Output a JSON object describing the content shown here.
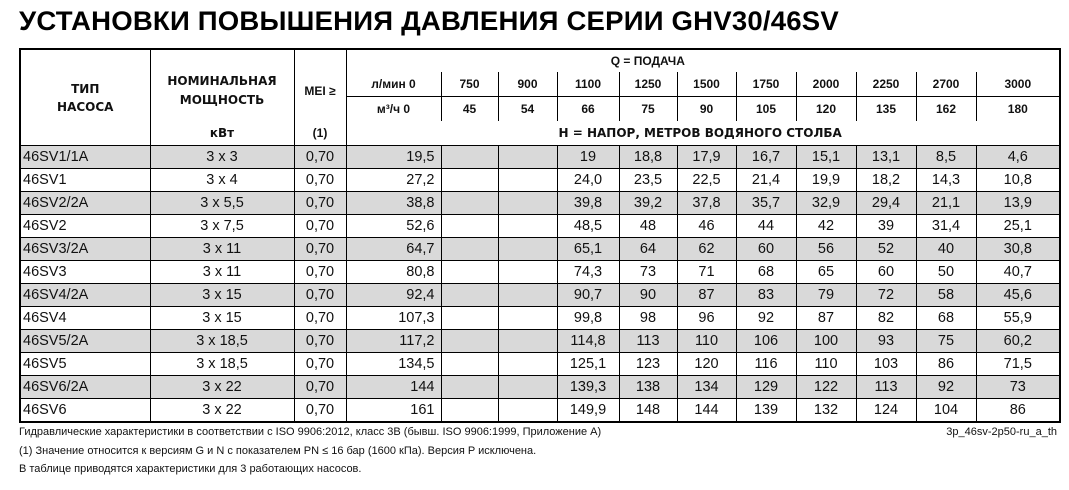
{
  "title": "УСТАНОВКИ ПОВЫШЕНИЯ ДАВЛЕНИЯ СЕРИИ GHV30/46SV",
  "header": {
    "type": "ТИП НАСОСА",
    "power": "НОМИНАЛЬНАЯ МОЩНОСТЬ",
    "power_unit": "кВт",
    "mei": "MEI ≥",
    "mei_note": "(1)",
    "q": "Q = ПОДАЧА",
    "h": "H = НАПОР, МЕТРОВ ВОДЯНОГО СТОЛБА",
    "lpm_label": "л/мин 0",
    "m3h_label": "м³/ч 0",
    "lpm": [
      "750",
      "900",
      "1100",
      "1250",
      "1500",
      "1750",
      "2000",
      "2250",
      "2700",
      "3000"
    ],
    "m3h": [
      "45",
      "54",
      "66",
      "75",
      "90",
      "105",
      "120",
      "135",
      "162",
      "180"
    ]
  },
  "rows": [
    [
      "46SV1/1A",
      "3 x 3",
      "0,70",
      "19,5",
      "",
      "",
      "19",
      "18,8",
      "17,9",
      "16,7",
      "15,1",
      "13,1",
      "8,5",
      "4,6"
    ],
    [
      "46SV1",
      "3 x 4",
      "0,70",
      "27,2",
      "",
      "",
      "24,0",
      "23,5",
      "22,5",
      "21,4",
      "19,9",
      "18,2",
      "14,3",
      "10,8"
    ],
    [
      "46SV2/2A",
      "3 x 5,5",
      "0,70",
      "38,8",
      "",
      "",
      "39,8",
      "39,2",
      "37,8",
      "35,7",
      "32,9",
      "29,4",
      "21,1",
      "13,9"
    ],
    [
      "46SV2",
      "3 x 7,5",
      "0,70",
      "52,6",
      "",
      "",
      "48,5",
      "48",
      "46",
      "44",
      "42",
      "39",
      "31,4",
      "25,1"
    ],
    [
      "46SV3/2A",
      "3 x 11",
      "0,70",
      "64,7",
      "",
      "",
      "65,1",
      "64",
      "62",
      "60",
      "56",
      "52",
      "40",
      "30,8"
    ],
    [
      "46SV3",
      "3 x 11",
      "0,70",
      "80,8",
      "",
      "",
      "74,3",
      "73",
      "71",
      "68",
      "65",
      "60",
      "50",
      "40,7"
    ],
    [
      "46SV4/2A",
      "3 x 15",
      "0,70",
      "92,4",
      "",
      "",
      "90,7",
      "90",
      "87",
      "83",
      "79",
      "72",
      "58",
      "45,6"
    ],
    [
      "46SV4",
      "3 x 15",
      "0,70",
      "107,3",
      "",
      "",
      "99,8",
      "98",
      "96",
      "92",
      "87",
      "82",
      "68",
      "55,9"
    ],
    [
      "46SV5/2A",
      "3 x 18,5",
      "0,70",
      "117,2",
      "",
      "",
      "114,8",
      "113",
      "110",
      "106",
      "100",
      "93",
      "75",
      "60,2"
    ],
    [
      "46SV5",
      "3 x 18,5",
      "0,70",
      "134,5",
      "",
      "",
      "125,1",
      "123",
      "120",
      "116",
      "110",
      "103",
      "86",
      "71,5"
    ],
    [
      "46SV6/2A",
      "3 x 22",
      "0,70",
      "144",
      "",
      "",
      "139,3",
      "138",
      "134",
      "129",
      "122",
      "113",
      "92",
      "73"
    ],
    [
      "46SV6",
      "3 x 22",
      "0,70",
      "161",
      "",
      "",
      "149,9",
      "148",
      "144",
      "139",
      "132",
      "124",
      "104",
      "86"
    ]
  ],
  "footer": {
    "note1": "Гидравлические характеристики в соответствии с ISO 9906:2012, класс 3B (бывш. ISO 9906:1999, Приложение A)",
    "code": "3p_46sv-2p50-ru_a_th",
    "note2": "(1) Значение относится к версиям G и N с показателем PN ≤ 16 бар (1600 кПа). Версия P исключена.",
    "note3": "В таблице приводятся характеристики для 3 работающих насосов."
  }
}
